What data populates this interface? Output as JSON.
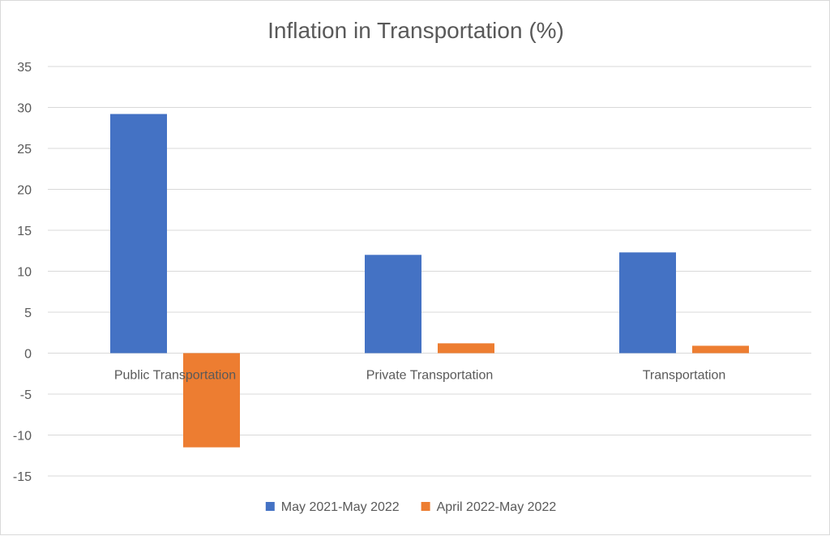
{
  "chart_data": {
    "type": "bar",
    "title": "Inflation in Transportation (%)",
    "xlabel": "",
    "ylabel": "",
    "categories": [
      "Public Transportation",
      "Private Transportation",
      "Transportation"
    ],
    "series": [
      {
        "name": "May 2021-May 2022",
        "values": [
          29.2,
          12.0,
          12.3
        ],
        "color": "#4472c4"
      },
      {
        "name": "April 2022-May 2022",
        "values": [
          -11.5,
          1.2,
          0.9
        ],
        "color": "#ed7d31"
      }
    ],
    "ylim": [
      -15,
      35
    ],
    "yticks": [
      35,
      30,
      25,
      20,
      15,
      10,
      5,
      0,
      -5,
      -10,
      -15
    ],
    "grid": true,
    "legend_position": "bottom"
  },
  "colors": {
    "gridline": "#d9d9d9",
    "text": "#595959"
  }
}
